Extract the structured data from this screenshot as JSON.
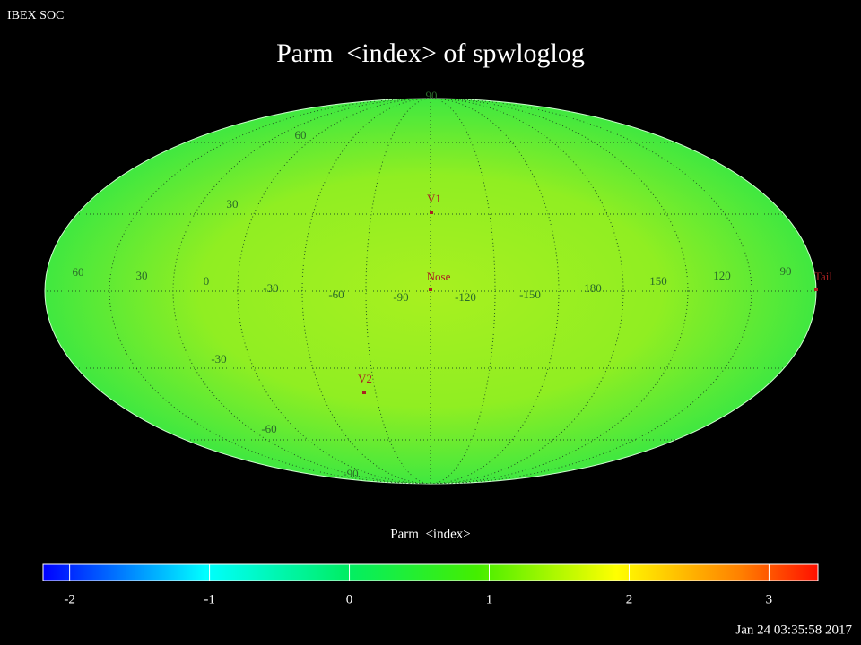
{
  "header": {
    "org": "IBEX SOC",
    "title": "Parm  <index> of spwloglog"
  },
  "map": {
    "latitude_labels": [
      "90",
      "60",
      "30",
      "-30",
      "-60",
      "-90"
    ],
    "longitude_labels": [
      "60",
      "30",
      "0",
      "-30",
      "-60",
      "-90",
      "-120",
      "-150",
      "180",
      "150",
      "120",
      "90"
    ],
    "markers": [
      "V1",
      "Nose",
      "V2",
      "Tail"
    ]
  },
  "colorbar": {
    "label": "Parm  <index>",
    "lim": [
      -2.19,
      3.35
    ],
    "ticks": [
      -2,
      -1,
      0,
      1,
      2,
      3
    ]
  },
  "footer": {
    "timestamp": "Jan 24 03:35:58 2017"
  }
}
